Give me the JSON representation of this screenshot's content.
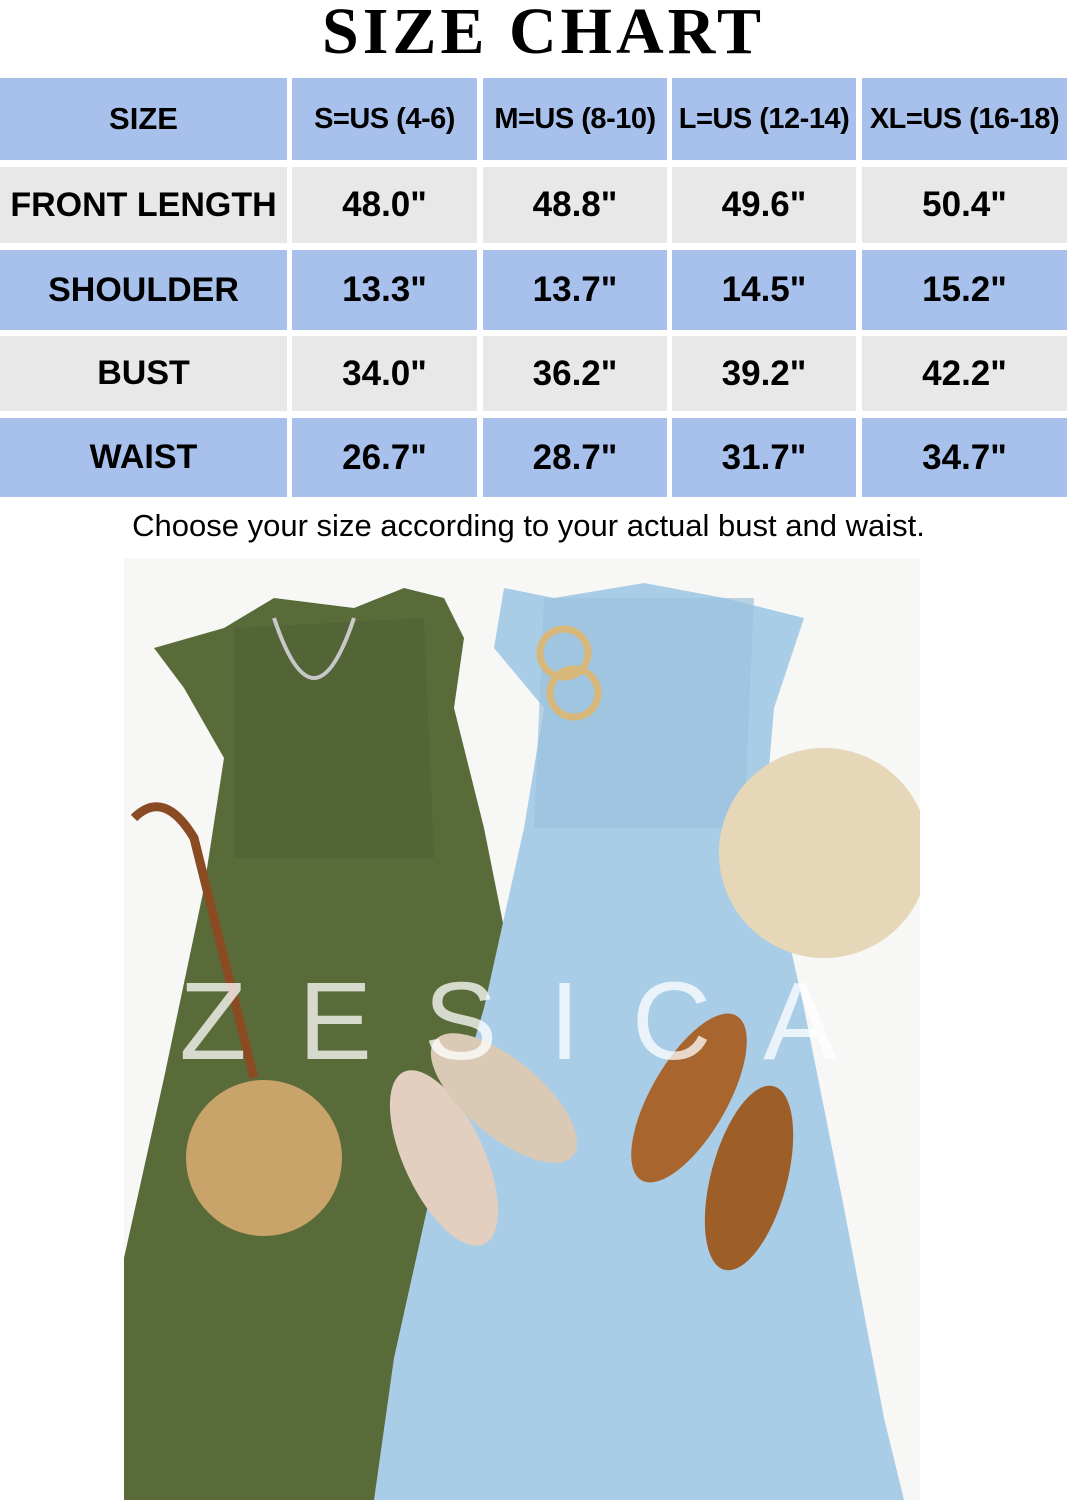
{
  "title": "SIZE CHART",
  "table": {
    "header": [
      "SIZE",
      "S=US (4-6)",
      "M=US (8-10)",
      "L=US (12-14)",
      "XL=US (16-18)"
    ],
    "rows": [
      {
        "label": "FRONT LENGTH",
        "values": [
          "48.0\"",
          "48.8\"",
          "49.6\"",
          "50.4\""
        ]
      },
      {
        "label": "SHOULDER",
        "values": [
          "13.3\"",
          "13.7\"",
          "14.5\"",
          "15.2\""
        ]
      },
      {
        "label": "BUST",
        "values": [
          "34.0\"",
          "36.2\"",
          "39.2\"",
          "42.2\""
        ]
      },
      {
        "label": "WAIST",
        "values": [
          "26.7\"",
          "28.7\"",
          "31.7\"",
          "34.7\""
        ]
      }
    ]
  },
  "note": "Choose your size according to your actual bust and waist.",
  "photo": {
    "watermark": "ZESICA",
    "colors": {
      "green_dress": "#5a6b3a",
      "blue_dress": "#a9cde6"
    }
  },
  "colors": {
    "header_blue": "#a8c1ec",
    "row_gray": "#e8e8e8"
  }
}
